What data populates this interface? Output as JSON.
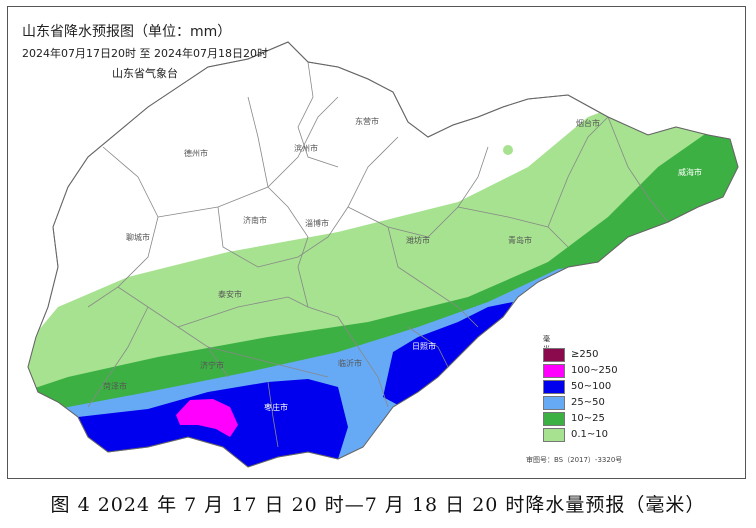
{
  "map": {
    "title": "山东省降水预报图（单位：mm）",
    "period": "2024年07月17日20时  至  2024年07月18日20时",
    "issuer": "山东省气象台",
    "review_number": "审图号：BS（2017）-3320号"
  },
  "cities": [
    {
      "name": "烟台市"
    },
    {
      "name": "东营市"
    },
    {
      "name": "德州市"
    },
    {
      "name": "滨州市"
    },
    {
      "name": "威海市"
    },
    {
      "name": "济南市"
    },
    {
      "name": "淄博市"
    },
    {
      "name": "聊城市"
    },
    {
      "name": "潍坊市"
    },
    {
      "name": "青岛市"
    },
    {
      "name": "泰安市"
    },
    {
      "name": "日照市"
    },
    {
      "name": "济宁市"
    },
    {
      "name": "临沂市"
    },
    {
      "name": "菏泽市"
    },
    {
      "name": "枣庄市"
    }
  ],
  "legend": {
    "unit": "毫米",
    "items": [
      {
        "label": "≥250",
        "color": "#8b0a4e"
      },
      {
        "label": "100~250",
        "color": "#ff00ff"
      },
      {
        "label": "50~100",
        "color": "#0000ee"
      },
      {
        "label": "25~50",
        "color": "#66aaf5"
      },
      {
        "label": "10~25",
        "color": "#3cb043"
      },
      {
        "label": "0.1~10",
        "color": "#a6e290"
      }
    ]
  },
  "caption": "图 4  2024 年 7 月 17 日 20 时—7 月 18 日 20 时降水量预报（毫米）"
}
